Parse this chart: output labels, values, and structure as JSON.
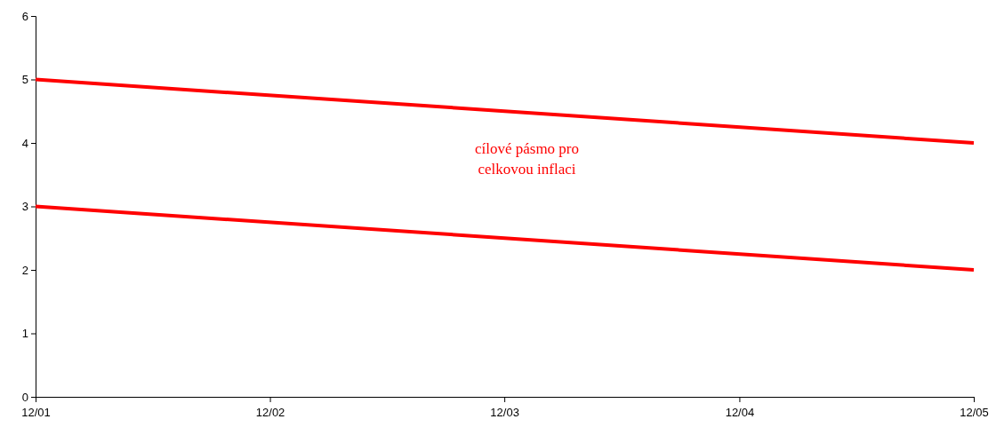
{
  "chart_data": {
    "type": "line",
    "x": [
      "2001-12",
      "2005-12"
    ],
    "series": [
      {
        "color": "#ff0000",
        "values": [
          5,
          4
        ]
      },
      {
        "color": "#ff0000",
        "values": [
          3,
          2
        ]
      }
    ],
    "xlim": [
      "2001-12",
      "2005-12"
    ],
    "xticks": [
      {
        "value": "2001-12",
        "label": "12/01"
      },
      {
        "value": "2002-12",
        "label": "12/02"
      },
      {
        "value": "2003-12",
        "label": "12/03"
      },
      {
        "value": "2004-12",
        "label": "12/04"
      },
      {
        "value": "2005-12",
        "label": "12/05"
      }
    ],
    "ylim": [
      0,
      6
    ],
    "yticks": [
      0,
      1,
      2,
      3,
      4,
      5,
      6
    ],
    "annotations": [
      "cílové pásmo pro\ncelkovou inflaci"
    ],
    "marker": "none",
    "line_style": "solid",
    "grid": false
  }
}
